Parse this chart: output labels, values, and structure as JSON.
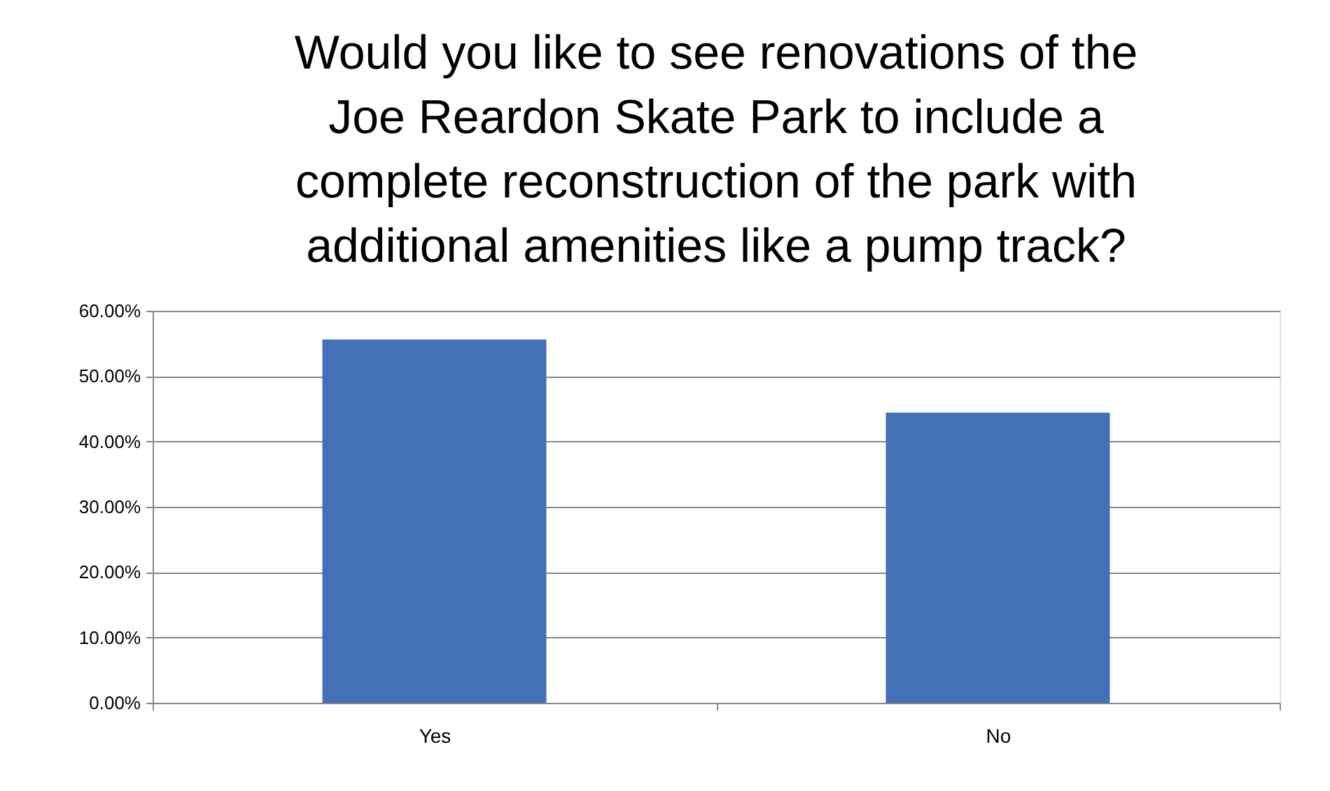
{
  "chart_data": {
    "type": "bar",
    "title": "Would you like to see renovations of the Joe Reardon Skate Park to include a complete reconstruction of the park with additional amenities like a pump track?",
    "categories": [
      "Yes",
      "No"
    ],
    "series": [
      {
        "color": "#4470b8",
        "values": [
          55.6,
          44.4
        ]
      }
    ],
    "ylim": [
      0,
      60
    ],
    "yticks": [
      {
        "value": 0,
        "label": "0.00%"
      },
      {
        "value": 10,
        "label": "10.00%"
      },
      {
        "value": 20,
        "label": "20.00%"
      },
      {
        "value": 30,
        "label": "30.00%"
      },
      {
        "value": 40,
        "label": "40.00%"
      },
      {
        "value": 50,
        "label": "50.00%"
      },
      {
        "value": 60,
        "label": "60.00%"
      }
    ],
    "grid": "y"
  }
}
